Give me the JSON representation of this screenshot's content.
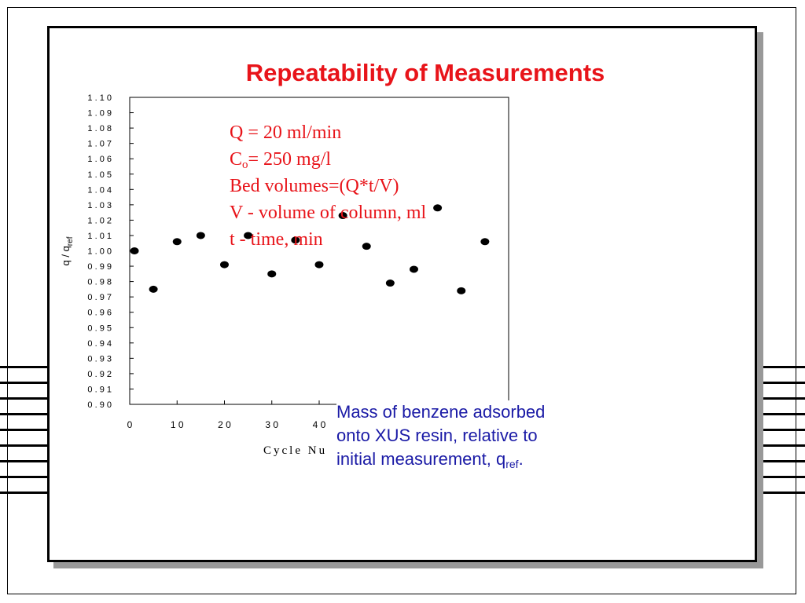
{
  "slide": {
    "title": "Repeatability of Measurements",
    "params": {
      "line1": "Q = 20 ml/min",
      "line2_main": "C",
      "line2_sub": "o",
      "line2_rest": "= 250 mg/l",
      "line3": "Bed volumes=(Q*t/V)",
      "line4": "V - volume of column, ml",
      "line5": "t - time, min"
    },
    "caption": {
      "line1": "Mass of benzene adsorbed",
      "line2": "onto XUS resin, relative to",
      "line3_main": "initial measurement, q",
      "line3_sub": "ref",
      "line3_end": "."
    },
    "colors": {
      "title": "#e8141a",
      "params": "#e8141a",
      "caption": "#1a1aa6",
      "markers": "#000000"
    }
  },
  "chart_data": {
    "type": "scatter",
    "title": "Repeatability of Measurements",
    "xlabel": "Cycle Nu",
    "ylabel_main": "q / q",
    "ylabel_sub": "ref",
    "xlim": [
      0,
      80
    ],
    "ylim": [
      0.9,
      1.1
    ],
    "xticks": [
      "0",
      "1 0",
      "2 0",
      "3 0",
      "4 0"
    ],
    "xtick_values": [
      0,
      10,
      20,
      30,
      40
    ],
    "yticks": [
      "1 . 1 0",
      "1 . 0 9",
      "1 . 0 8",
      "1 . 0 7",
      "1 . 0 6",
      "1 . 0 5",
      "1 . 0 4",
      "1 . 0 3",
      "1 . 0 2",
      "1 . 0 1",
      "1 . 0 0",
      "0 . 9 9",
      "0 . 9 8",
      "0 . 9 7",
      "0 . 9 6",
      "0 . 9 5",
      "0 . 9 4",
      "0 . 9 3",
      "0 . 9 2",
      "0 . 9 1",
      "0 . 9 0"
    ],
    "ytick_values": [
      1.1,
      1.09,
      1.08,
      1.07,
      1.06,
      1.05,
      1.04,
      1.03,
      1.02,
      1.01,
      1.0,
      0.99,
      0.98,
      0.97,
      0.96,
      0.95,
      0.94,
      0.93,
      0.92,
      0.91,
      0.9
    ],
    "grid": false,
    "points": [
      {
        "x": 1,
        "y": 1.0
      },
      {
        "x": 5,
        "y": 0.975
      },
      {
        "x": 10,
        "y": 1.006
      },
      {
        "x": 15,
        "y": 1.01
      },
      {
        "x": 20,
        "y": 0.991
      },
      {
        "x": 25,
        "y": 1.01
      },
      {
        "x": 30,
        "y": 0.985
      },
      {
        "x": 35,
        "y": 1.007
      },
      {
        "x": 40,
        "y": 0.991
      },
      {
        "x": 45,
        "y": 1.023
      },
      {
        "x": 50,
        "y": 1.003
      },
      {
        "x": 55,
        "y": 0.979
      },
      {
        "x": 60,
        "y": 0.988
      },
      {
        "x": 65,
        "y": 1.028
      },
      {
        "x": 70,
        "y": 0.974
      },
      {
        "x": 75,
        "y": 1.006
      }
    ]
  }
}
